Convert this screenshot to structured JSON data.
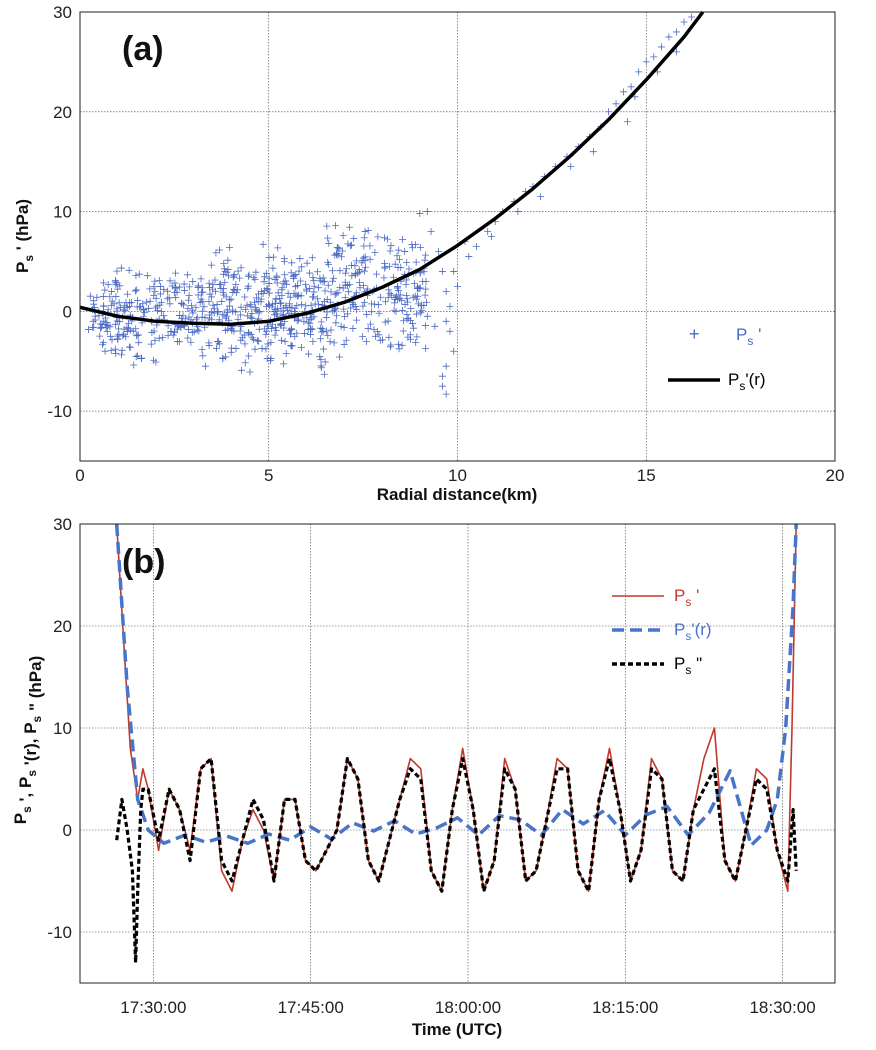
{
  "chart_data": [
    {
      "id": "a",
      "type": "scatter",
      "panel_label": "(a)",
      "xlabel": "Radial distance(km)",
      "ylabel": {
        "main": "P",
        "sub": "s",
        "suffix": " ' (hPa)"
      },
      "xlim": [
        0,
        20
      ],
      "ylim": [
        -15,
        30
      ],
      "xticks": [
        0,
        5,
        10,
        15,
        20
      ],
      "yticks": [
        -10,
        0,
        10,
        20,
        30
      ],
      "grid": true,
      "legend_position": "right",
      "colors": {
        "scatter": "#4a68c4",
        "fit": "#000000"
      },
      "series": [
        {
          "name": "P_s'",
          "legend": {
            "main": "P",
            "sub": "s",
            "suffix": " '"
          },
          "kind": "scatter",
          "marker": "plus",
          "clusters": [
            {
              "x_range": [
                0.2,
                3.5
              ],
              "y_range": [
                -6,
                5
              ],
              "count": 260
            },
            {
              "x_range": [
                3.5,
                6.5
              ],
              "y_range": [
                -6.5,
                7
              ],
              "count": 320
            },
            {
              "x_range": [
                6.5,
                9.2
              ],
              "y_range": [
                -5,
                9
              ],
              "count": 240
            }
          ],
          "points": [
            [
              9.0,
              9.8
            ],
            [
              9.2,
              10.0
            ],
            [
              9.3,
              8.0
            ],
            [
              9.5,
              6.0
            ],
            [
              9.6,
              4.0
            ],
            [
              9.7,
              2.0
            ],
            [
              9.8,
              -2.0
            ],
            [
              9.9,
              -4.0
            ],
            [
              9.7,
              -5.5
            ],
            [
              9.6,
              -6.5
            ],
            [
              9.6,
              -7.5
            ],
            [
              9.7,
              -8.3
            ],
            [
              9.2,
              -0.5
            ],
            [
              9.4,
              -1.5
            ],
            [
              10.2,
              7.0
            ],
            [
              10.5,
              6.5
            ],
            [
              10.8,
              8.0
            ],
            [
              11.0,
              9.0
            ],
            [
              11.2,
              10.0
            ],
            [
              11.5,
              11.0
            ],
            [
              11.8,
              12.0
            ],
            [
              12.0,
              12.5
            ],
            [
              12.3,
              13.5
            ],
            [
              12.6,
              14.5
            ],
            [
              12.9,
              15.5
            ],
            [
              13.2,
              16.5
            ],
            [
              13.5,
              17.5
            ],
            [
              13.8,
              18.5
            ],
            [
              14.0,
              20.0
            ],
            [
              14.2,
              20.8
            ],
            [
              14.4,
              22.0
            ],
            [
              14.6,
              22.5
            ],
            [
              14.8,
              24.0
            ],
            [
              15.0,
              25.0
            ],
            [
              15.2,
              25.5
            ],
            [
              15.4,
              26.5
            ],
            [
              15.6,
              27.5
            ],
            [
              15.8,
              28.0
            ],
            [
              16.0,
              29.0
            ],
            [
              16.2,
              29.5
            ],
            [
              14.5,
              19.0
            ],
            [
              14.7,
              21.5
            ],
            [
              15.3,
              24.0
            ],
            [
              15.8,
              26.0
            ],
            [
              13.0,
              14.5
            ],
            [
              13.6,
              16.0
            ],
            [
              12.2,
              11.5
            ],
            [
              11.6,
              10.0
            ],
            [
              10.9,
              7.5
            ],
            [
              10.3,
              5.5
            ],
            [
              9.9,
              4.0
            ],
            [
              9.8,
              0.5
            ],
            [
              9.7,
              -1.0
            ],
            [
              10.0,
              2.5
            ]
          ]
        },
        {
          "name": "P_s'(r)",
          "legend": {
            "main": "P",
            "sub": "s",
            "suffix": "'(r)"
          },
          "kind": "line",
          "x": [
            0,
            1,
            2,
            3,
            4,
            5,
            6,
            7,
            8,
            9,
            10,
            11,
            12,
            13,
            14,
            15,
            16,
            16.5
          ],
          "y": [
            0.4,
            -0.5,
            -1.0,
            -1.2,
            -1.3,
            -1.0,
            -0.2,
            0.9,
            2.4,
            4.2,
            6.6,
            9.3,
            12.3,
            15.6,
            19.2,
            23.2,
            27.5,
            30.0
          ]
        }
      ]
    },
    {
      "id": "b",
      "type": "line",
      "panel_label": "(b)",
      "xlabel": "Time (UTC)",
      "ylabel": "P_s', P_s'(r), P_s\" (hPa)",
      "ylabel_parts": [
        {
          "t": "P",
          "sub": "s"
        },
        {
          "t": " ', P",
          "sub": "s"
        },
        {
          "t": " '(r), P",
          "sub": "s"
        },
        {
          "t": " \" (hPa)",
          "sub": ""
        }
      ],
      "xlim_minutes": [
        -7,
        65
      ],
      "x_tick_minutes": [
        0,
        15,
        30,
        45,
        60
      ],
      "xtick_labels": [
        "17:30:00",
        "17:45:00",
        "18:00:00",
        "18:15:00",
        "18:30:00"
      ],
      "ylim": [
        -15,
        30
      ],
      "yticks": [
        -10,
        0,
        10,
        20,
        30
      ],
      "grid": true,
      "legend_position": "top-right",
      "colors": {
        "Ps": "#c0392b",
        "Psr": "#4a74c9",
        "Psdd": "#000000"
      },
      "series": [
        {
          "name": "P_s'",
          "legend": {
            "main": "P",
            "sub": "s",
            "suffix": " '"
          },
          "style": "solid",
          "x": [
            -3.5,
            -2.8,
            -2.2,
            -1.5,
            -1.0,
            -0.5,
            0.5,
            1.5,
            2.5,
            3.5,
            4.5,
            5.5,
            6.5,
            7.5,
            8.5,
            9.5,
            10.5,
            11.5,
            12.5,
            13.5,
            14.5,
            15.5,
            16.5,
            17.5,
            18.5,
            19.5,
            20.5,
            21.5,
            22.5,
            23.5,
            24.5,
            25.5,
            26.5,
            27.5,
            28.5,
            29.5,
            30.5,
            31.5,
            32.5,
            33.5,
            34.5,
            35.5,
            36.5,
            37.5,
            38.5,
            39.5,
            40.5,
            41.5,
            42.5,
            43.5,
            44.5,
            45.5,
            46.5,
            47.5,
            48.5,
            49.5,
            50.5,
            51.5,
            52.5,
            53.5,
            54.5,
            55.5,
            56.5,
            57.5,
            58.5,
            59.5,
            60.5,
            60.9,
            61.3
          ],
          "y": [
            30,
            18,
            8,
            3,
            6,
            4,
            -2,
            4,
            2,
            -2,
            6,
            7,
            -4,
            -6,
            -1,
            2,
            0,
            -5,
            3,
            3,
            -3,
            -4,
            -2,
            0,
            7,
            5,
            -3,
            -5,
            -1,
            3,
            7,
            6,
            -4,
            -6,
            2,
            8,
            2,
            -6,
            -3,
            7,
            4,
            -5,
            -4,
            1,
            7,
            6,
            -4,
            -6,
            3,
            8,
            2,
            -5,
            -2,
            7,
            5,
            -4,
            -5,
            2,
            7,
            10,
            -3,
            -5,
            0,
            6,
            5,
            -2,
            -6,
            10,
            30
          ]
        },
        {
          "name": "P_s'(r)",
          "legend": {
            "main": "P",
            "sub": "s",
            "suffix": "'(r)"
          },
          "style": "dashed",
          "x": [
            -3.5,
            -2.5,
            -1.5,
            -0.5,
            1.0,
            3.0,
            5.0,
            7.0,
            9.0,
            11.0,
            13.0,
            15.0,
            17.0,
            19.0,
            21.0,
            23.0,
            25.0,
            27.0,
            29.0,
            31.0,
            33.0,
            35.0,
            37.0,
            39.0,
            41.0,
            43.0,
            45.0,
            47.0,
            49.0,
            51.0,
            53.0,
            55.0,
            57.0,
            58.5,
            59.5,
            60.3,
            61.0,
            61.3
          ],
          "y": [
            30,
            14,
            3,
            0,
            -1.3,
            -0.5,
            -1.2,
            -0.6,
            -1.3,
            -0.4,
            -1.0,
            0.3,
            -0.9,
            0.7,
            -0.1,
            0.9,
            -0.4,
            0.2,
            1.2,
            -0.5,
            1.4,
            1.0,
            -0.5,
            2.0,
            0.6,
            1.9,
            -0.5,
            1.5,
            2.3,
            -0.5,
            1.7,
            5.8,
            -1.5,
            0.0,
            3.0,
            10.0,
            22.0,
            30.0
          ]
        },
        {
          "name": "P_s\"",
          "legend": {
            "main": "P",
            "sub": "s",
            "suffix": " \""
          },
          "style": "dotted",
          "x": [
            -3.5,
            -3.0,
            -2.5,
            -2.0,
            -1.7,
            -1.5,
            -1.2,
            -1.0,
            -0.5,
            0.5,
            1.5,
            2.5,
            3.5,
            4.5,
            5.5,
            6.5,
            7.5,
            8.5,
            9.5,
            10.5,
            11.5,
            12.5,
            13.5,
            14.5,
            15.5,
            16.5,
            17.5,
            18.5,
            19.5,
            20.5,
            21.5,
            22.5,
            23.5,
            24.5,
            25.5,
            26.5,
            27.5,
            28.5,
            29.5,
            30.5,
            31.5,
            32.5,
            33.5,
            34.5,
            35.5,
            36.5,
            37.5,
            38.5,
            39.5,
            40.5,
            41.5,
            42.5,
            43.5,
            44.5,
            45.5,
            46.5,
            47.5,
            48.5,
            49.5,
            50.5,
            51.5,
            52.5,
            53.5,
            54.5,
            55.5,
            56.5,
            57.5,
            58.5,
            59.5,
            60.5,
            61.0,
            61.3
          ],
          "y": [
            -1,
            3,
            0,
            -4,
            -13,
            -6,
            2,
            4,
            4,
            -1,
            4,
            2,
            -3,
            6,
            7,
            -3,
            -5,
            -1,
            3,
            1,
            -5,
            3,
            3,
            -3,
            -4,
            -2,
            0,
            7,
            5,
            -3,
            -5,
            -1,
            3,
            6,
            5,
            -4,
            -6,
            2,
            7,
            2,
            -6,
            -3,
            6,
            4,
            -5,
            -4,
            1,
            6,
            6,
            -4,
            -6,
            3,
            7,
            2,
            -5,
            -2,
            6,
            5,
            -4,
            -5,
            2,
            4,
            6,
            -3,
            -5,
            0,
            5,
            4,
            -2,
            -5,
            2,
            -4
          ]
        }
      ]
    }
  ]
}
